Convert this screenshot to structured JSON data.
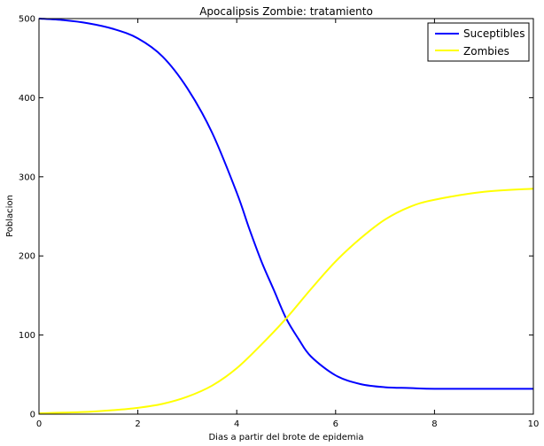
{
  "chart_data": {
    "type": "line",
    "title": "Apocalipsis Zombie: tratamiento",
    "xlabel": "Dias a partir del brote de epidemia",
    "ylabel": "Poblacion",
    "xlim": [
      0,
      10
    ],
    "ylim": [
      0,
      500
    ],
    "xticks": [
      0,
      2,
      4,
      6,
      8,
      10
    ],
    "yticks": [
      0,
      100,
      200,
      300,
      400,
      500
    ],
    "grid": false,
    "legend_position": "top-right",
    "series": [
      {
        "name": "Suceptibles",
        "color": "#0000ff",
        "x": [
          0,
          0.5,
          1,
          1.5,
          2,
          2.5,
          3,
          3.5,
          4,
          4.25,
          4.5,
          4.75,
          5,
          5.25,
          5.5,
          6,
          6.5,
          7,
          7.5,
          8,
          9,
          10
        ],
        "y": [
          500,
          498,
          494,
          487,
          475,
          452,
          412,
          356,
          280,
          235,
          193,
          157,
          121,
          95,
          73,
          49,
          38,
          34,
          33,
          32,
          32,
          32
        ]
      },
      {
        "name": "Zombies",
        "color": "#ffff00",
        "x": [
          0,
          0.5,
          1,
          1.5,
          2,
          2.5,
          3,
          3.5,
          4,
          4.5,
          5,
          5.5,
          6,
          6.5,
          7,
          7.5,
          8,
          9,
          10
        ],
        "y": [
          1,
          2,
          3,
          5,
          8,
          13,
          22,
          36,
          58,
          88,
          121,
          158,
          193,
          222,
          246,
          262,
          271,
          281,
          285
        ]
      }
    ]
  }
}
